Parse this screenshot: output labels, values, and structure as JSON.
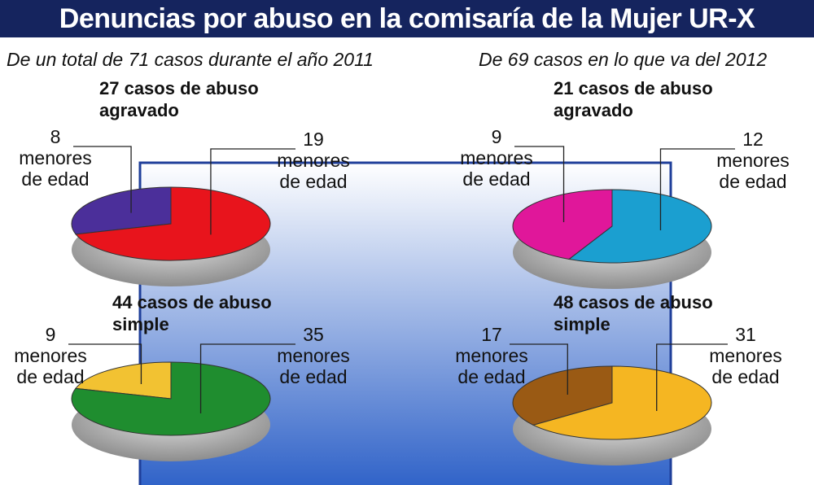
{
  "title": "Denuncias por abuso en la comisaría de la Mujer UR-X",
  "columns": [
    {
      "heading": "De un total de 71 casos durante el año 2011"
    },
    {
      "heading": "De 69 casos en lo que va del 2012"
    }
  ],
  "chart_data": [
    {
      "type": "pie",
      "title": "27 casos de abuso agravado",
      "categories": [
        "menores de edad",
        "menores de edad"
      ],
      "values": [
        8,
        19
      ],
      "colors": [
        "#4b2f9a",
        "#e8141c"
      ]
    },
    {
      "type": "pie",
      "title": "44 casos de abuso simple",
      "categories": [
        "menores de edad",
        "menores de edad"
      ],
      "values": [
        9,
        35
      ],
      "colors": [
        "#f2c232",
        "#1f8d2f"
      ]
    },
    {
      "type": "pie",
      "title": "21 casos de abuso agravado",
      "categories": [
        "menores de edad",
        "menores de edad"
      ],
      "values": [
        9,
        12
      ],
      "colors": [
        "#e0179a",
        "#1b9fd0"
      ]
    },
    {
      "type": "pie",
      "title": "48 casos de abuso simple",
      "categories": [
        "menores de edad",
        "menores de edad"
      ],
      "values": [
        17,
        31
      ],
      "colors": [
        "#9a5a14",
        "#f5b622"
      ]
    }
  ]
}
